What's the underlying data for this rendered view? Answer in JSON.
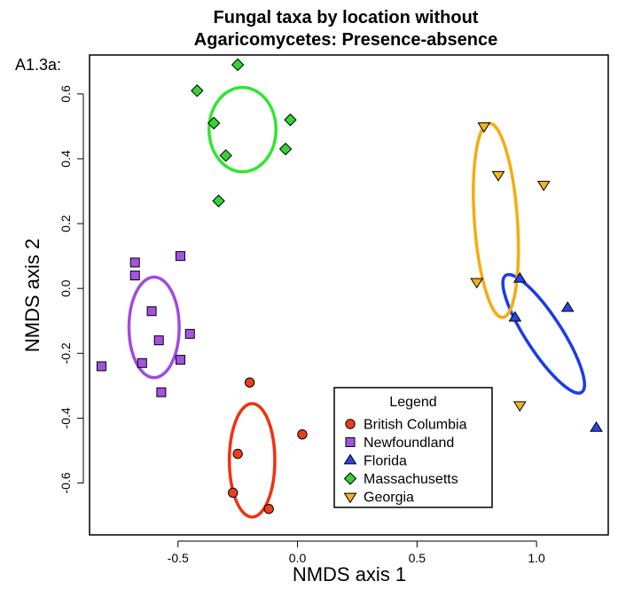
{
  "chart_data": {
    "type": "scatter",
    "title_lines": [
      "Fungal taxa by location without",
      "Agaricomycetes: Presence-absence"
    ],
    "panel_label": "A1.3a:",
    "xlabel": "NMDS axis 1",
    "ylabel": "NMDS axis 2",
    "xlim": [
      -0.87,
      1.3
    ],
    "ylim": [
      -0.76,
      0.72
    ],
    "x_ticks": [
      -0.5,
      0.0,
      0.5,
      1.0
    ],
    "x_tick_labels": [
      "-0.5",
      "0.0",
      "0.5",
      "1.0"
    ],
    "y_ticks": [
      -0.6,
      -0.4,
      -0.2,
      0.0,
      0.2,
      0.4,
      0.6
    ],
    "y_tick_labels": [
      "-0.6",
      "-0.4",
      "-0.2",
      "0.0",
      "0.2",
      "0.4",
      "0.6"
    ],
    "grid": false,
    "legend": {
      "title": "Legend",
      "position": "bottom-right"
    },
    "series": [
      {
        "name": "British Columbia",
        "marker": "circle",
        "fill": "#e8401e",
        "ellipse_color": "#f2300e",
        "ellipse": {
          "cx": -0.19,
          "cy": -0.53,
          "rx": 0.095,
          "ry": 0.175,
          "angle": 0
        },
        "points": [
          [
            -0.2,
            -0.29
          ],
          [
            -0.25,
            -0.51
          ],
          [
            0.02,
            -0.45
          ],
          [
            -0.27,
            -0.63
          ],
          [
            -0.12,
            -0.68
          ]
        ]
      },
      {
        "name": "Newfoundland",
        "marker": "square",
        "fill": "#a452e0",
        "ellipse_color": "#a14ae0",
        "ellipse": {
          "cx": -0.6,
          "cy": -0.12,
          "rx": 0.105,
          "ry": 0.155,
          "angle": 0
        },
        "points": [
          [
            -0.68,
            0.08
          ],
          [
            -0.68,
            0.04
          ],
          [
            -0.49,
            0.1
          ],
          [
            -0.61,
            -0.07
          ],
          [
            -0.58,
            -0.16
          ],
          [
            -0.45,
            -0.14
          ],
          [
            -0.65,
            -0.23
          ],
          [
            -0.49,
            -0.22
          ],
          [
            -0.82,
            -0.24
          ],
          [
            -0.57,
            -0.32
          ]
        ]
      },
      {
        "name": "Florida",
        "marker": "triangle-up",
        "fill": "#2a44e8",
        "ellipse_color": "#1c3ce6",
        "ellipse": {
          "cx": 1.03,
          "cy": -0.14,
          "rx": 0.075,
          "ry": 0.215,
          "angle": -33
        },
        "points": [
          [
            0.93,
            0.03
          ],
          [
            0.91,
            -0.09
          ],
          [
            1.13,
            -0.06
          ],
          [
            1.25,
            -0.43
          ]
        ]
      },
      {
        "name": "Massachusetts",
        "marker": "diamond",
        "fill": "#35d435",
        "ellipse_color": "#2ee62e",
        "ellipse": {
          "cx": -0.23,
          "cy": 0.49,
          "rx": 0.14,
          "ry": 0.13,
          "angle": 0
        },
        "points": [
          [
            -0.25,
            0.69
          ],
          [
            -0.42,
            0.61
          ],
          [
            -0.35,
            0.51
          ],
          [
            -0.03,
            0.52
          ],
          [
            -0.3,
            0.41
          ],
          [
            -0.05,
            0.43
          ],
          [
            -0.33,
            0.27
          ]
        ]
      },
      {
        "name": "Georgia",
        "marker": "triangle-down",
        "fill": "#f7b21c",
        "ellipse_color": "#f5ac10",
        "ellipse": {
          "cx": 0.83,
          "cy": 0.21,
          "rx": 0.09,
          "ry": 0.3,
          "angle": -4
        },
        "points": [
          [
            0.78,
            0.5
          ],
          [
            0.84,
            0.35
          ],
          [
            1.03,
            0.32
          ],
          [
            0.75,
            0.02
          ],
          [
            0.93,
            -0.36
          ]
        ]
      }
    ]
  }
}
